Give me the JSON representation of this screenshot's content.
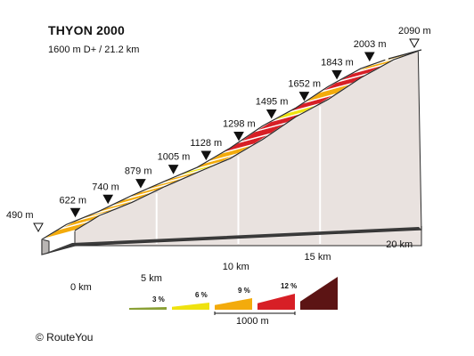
{
  "title": "THYON 2000",
  "subtitle": "1600 m D+ / 21.2 km",
  "copyright": "© RouteYou",
  "chart_data": {
    "type": "area",
    "title": "THYON 2000",
    "subtitle": "1600 m D+ / 21.2 km",
    "xlabel": "",
    "ylabel": "",
    "x_unit": "km",
    "y_unit": "m",
    "xlim": [
      0,
      21.2
    ],
    "ylim": [
      490,
      2090
    ],
    "x_ticks": [
      {
        "value": 0,
        "label": "0 km"
      },
      {
        "value": 5,
        "label": "5 km"
      },
      {
        "value": 10,
        "label": "10 km"
      },
      {
        "value": 15,
        "label": "15 km"
      },
      {
        "value": 20,
        "label": "20 km"
      }
    ],
    "elevation_markers": [
      {
        "km": 0,
        "elevation": 490,
        "label": "490 m",
        "kind": "start"
      },
      {
        "km": 1.5,
        "elevation": 622,
        "label": "622 m",
        "kind": "km"
      },
      {
        "km": 3.5,
        "elevation": 740,
        "label": "740 m",
        "kind": "km"
      },
      {
        "km": 5.5,
        "elevation": 879,
        "label": "879 m",
        "kind": "km"
      },
      {
        "km": 7.5,
        "elevation": 1005,
        "label": "1005 m",
        "kind": "km"
      },
      {
        "km": 9.5,
        "elevation": 1128,
        "label": "1128 m",
        "kind": "km"
      },
      {
        "km": 11.5,
        "elevation": 1298,
        "label": "1298 m",
        "kind": "km"
      },
      {
        "km": 13.5,
        "elevation": 1495,
        "label": "1495 m",
        "kind": "km"
      },
      {
        "km": 15.5,
        "elevation": 1652,
        "label": "1652 m",
        "kind": "km"
      },
      {
        "km": 17.5,
        "elevation": 1843,
        "label": "1843 m",
        "kind": "km"
      },
      {
        "km": 19.5,
        "elevation": 2003,
        "label": "2003 m",
        "kind": "km"
      },
      {
        "km": 21.2,
        "elevation": 2090,
        "label": "2090 m",
        "kind": "end"
      }
    ],
    "segment_colors": {
      "3": "#efe20f",
      "6": "#f3ab0c",
      "9": "#d71f26"
    },
    "segments": [
      {
        "from_km": 0,
        "to_km": 1,
        "gradient_class": 6
      },
      {
        "from_km": 1,
        "to_km": 2,
        "gradient_class": 6
      },
      {
        "from_km": 2,
        "to_km": 3,
        "gradient_class": 6
      },
      {
        "from_km": 3,
        "to_km": 4,
        "gradient_class": 6
      },
      {
        "from_km": 4,
        "to_km": 5,
        "gradient_class": 6
      },
      {
        "from_km": 5,
        "to_km": 6,
        "gradient_class": 6
      },
      {
        "from_km": 6,
        "to_km": 7,
        "gradient_class": 6
      },
      {
        "from_km": 7,
        "to_km": 8,
        "gradient_class": 6
      },
      {
        "from_km": 8,
        "to_km": 9,
        "gradient_class": 3
      },
      {
        "from_km": 9,
        "to_km": 10,
        "gradient_class": 6
      },
      {
        "from_km": 10,
        "to_km": 11,
        "gradient_class": 6
      },
      {
        "from_km": 11,
        "to_km": 12,
        "gradient_class": 9
      },
      {
        "from_km": 12,
        "to_km": 13,
        "gradient_class": 9
      },
      {
        "from_km": 13,
        "to_km": 14,
        "gradient_class": 9
      },
      {
        "from_km": 14,
        "to_km": 15,
        "gradient_class": 3
      },
      {
        "from_km": 15,
        "to_km": 16,
        "gradient_class": 9
      },
      {
        "from_km": 16,
        "to_km": 17,
        "gradient_class": 6
      },
      {
        "from_km": 17,
        "to_km": 18,
        "gradient_class": 9
      },
      {
        "from_km": 18,
        "to_km": 19,
        "gradient_class": 9
      },
      {
        "from_km": 19,
        "to_km": 20,
        "gradient_class": 6
      },
      {
        "from_km": 20,
        "to_km": 21.2,
        "gradient_class": 6
      }
    ],
    "legend": {
      "items": [
        {
          "label": "3 %",
          "color": "#8aa035"
        },
        {
          "label": "6 %",
          "color": "#efe20f"
        },
        {
          "label": "9 %",
          "color": "#f3ab0c"
        },
        {
          "label": "12 %",
          "color": "#d71f26"
        },
        {
          "label": "",
          "color": "#5c1414"
        }
      ],
      "scale_label": "1000 m",
      "placement": "bottom"
    },
    "grid": false
  }
}
